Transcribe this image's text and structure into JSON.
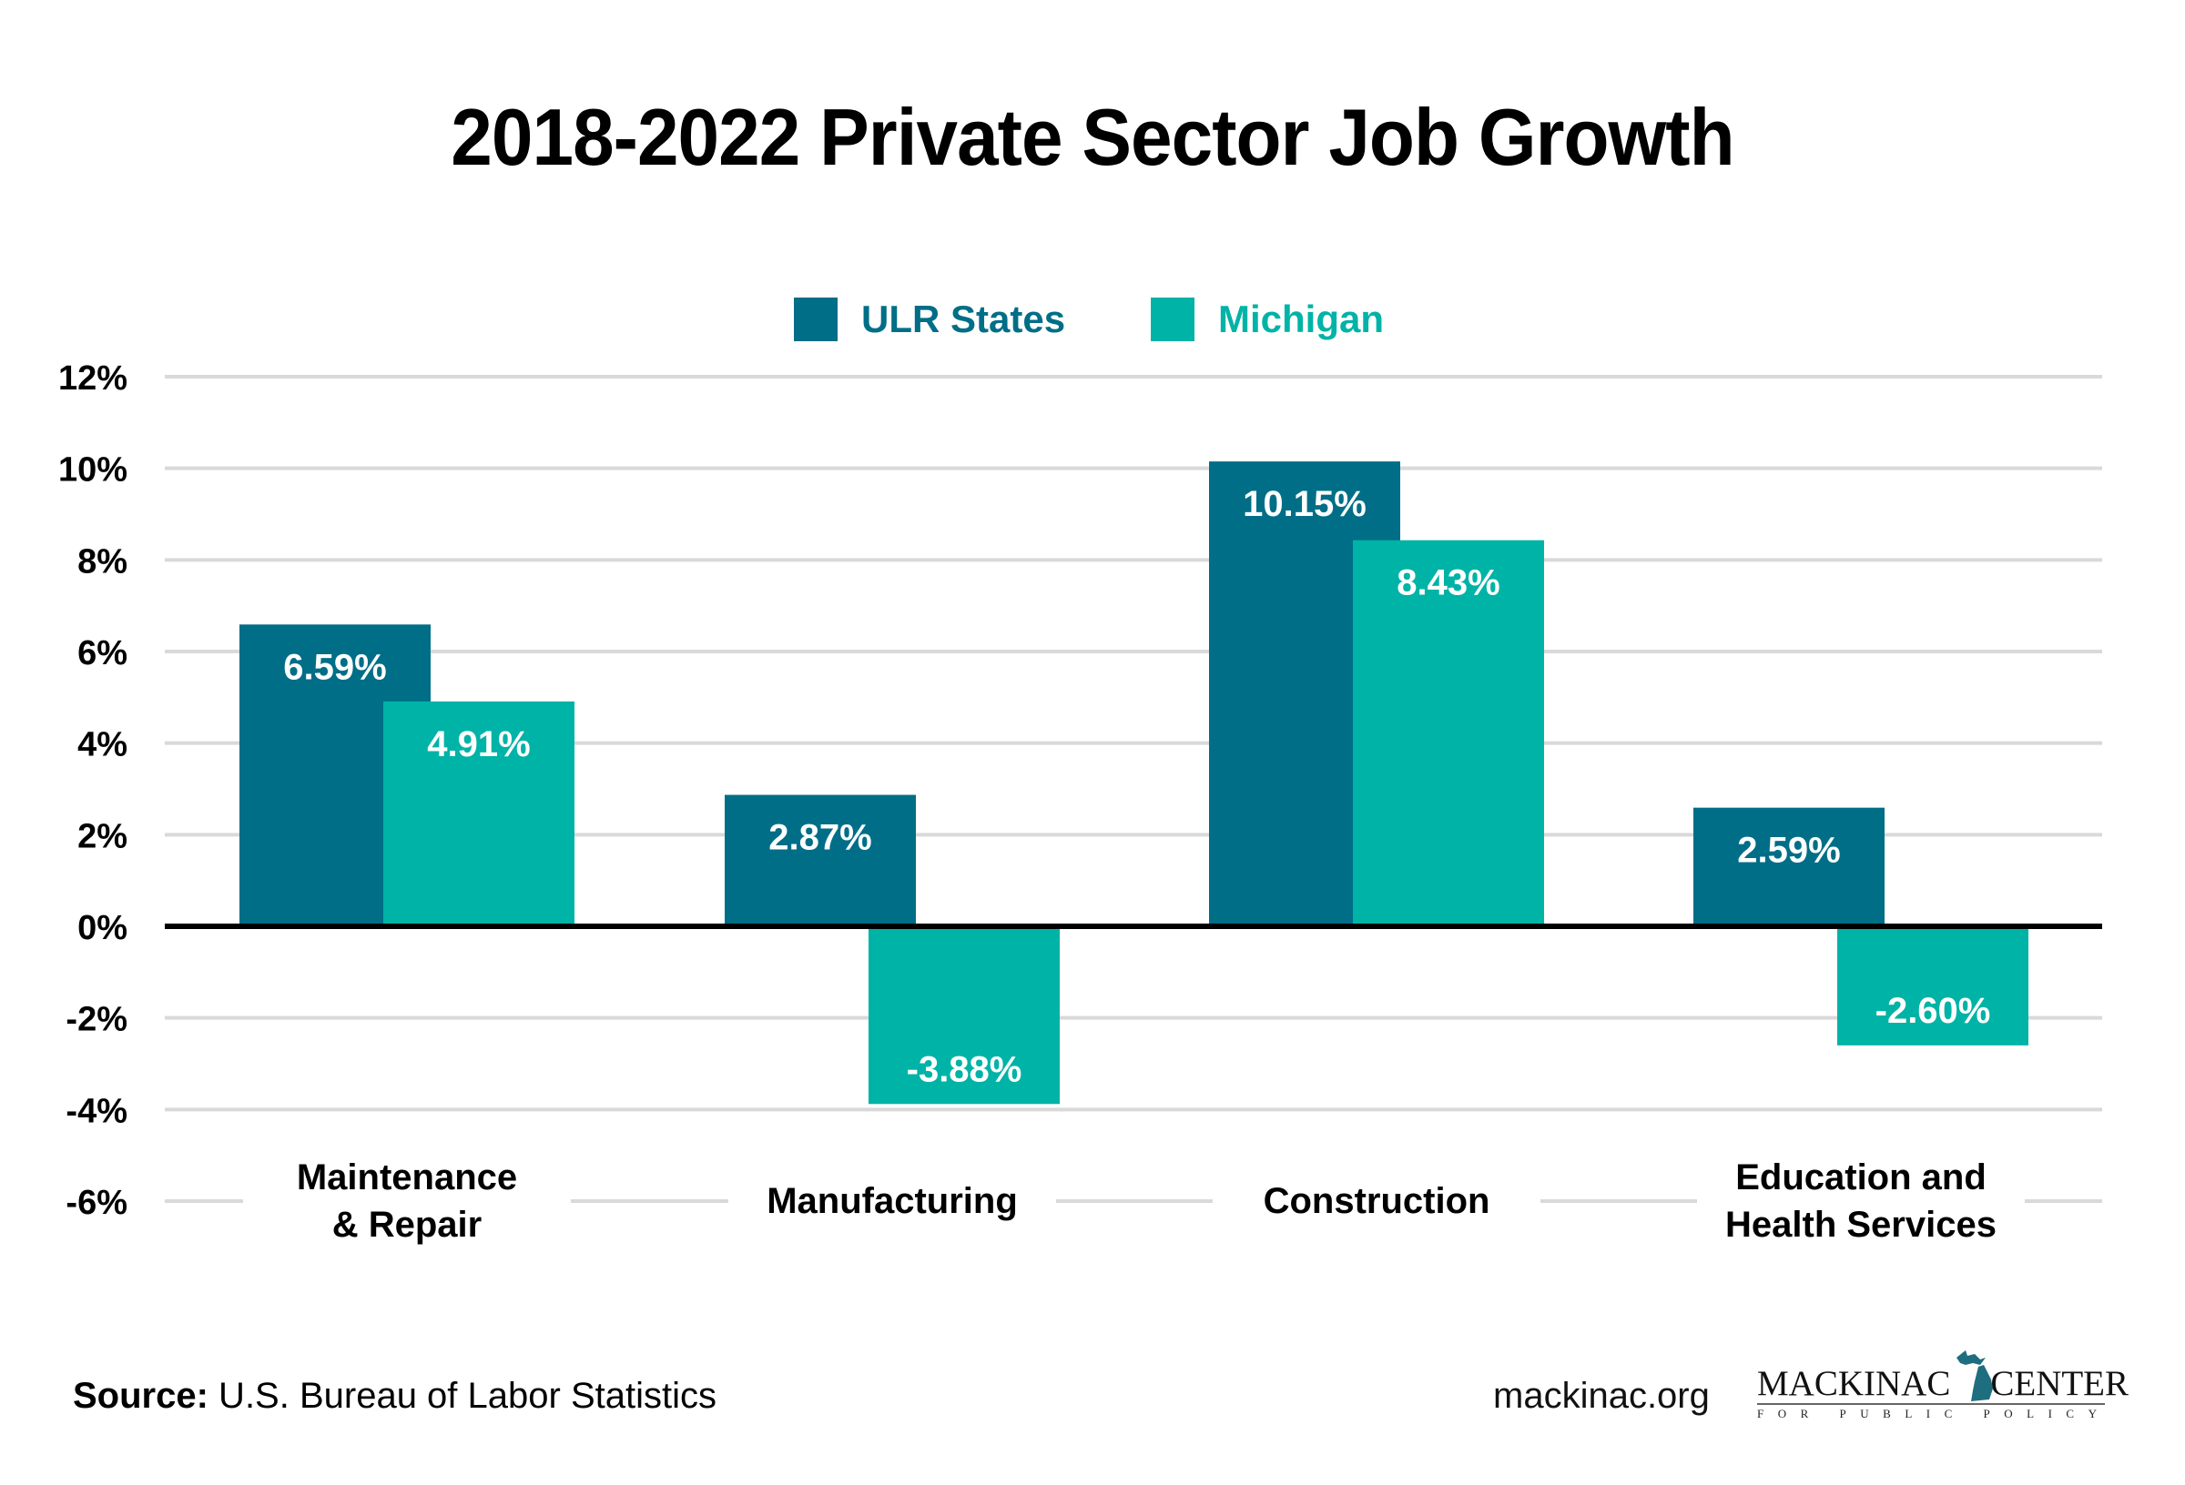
{
  "chart_data": {
    "type": "bar",
    "title": "2018-2022 Private Sector Job Growth",
    "xlabel": "",
    "ylabel": "",
    "categories": [
      [
        "Maintenance",
        "& Repair"
      ],
      [
        "Manufacturing"
      ],
      [
        "Construction"
      ],
      [
        "Education and",
        "Health Services"
      ]
    ],
    "series": [
      {
        "name": "ULR States",
        "color": "#006E87",
        "values": [
          6.59,
          2.87,
          10.15,
          2.59
        ],
        "labels": [
          "6.59%",
          "2.87%",
          "10.15%",
          "2.59%"
        ]
      },
      {
        "name": "Michigan",
        "color": "#00B3A7",
        "values": [
          4.91,
          -3.88,
          8.43,
          -2.6
        ],
        "labels": [
          "4.91%",
          "-3.88%",
          "8.43%",
          "-2.60%"
        ]
      }
    ],
    "ylim": [
      -6,
      12
    ],
    "yticks": [
      12,
      10,
      8,
      6,
      4,
      2,
      0,
      -2,
      -4,
      -6
    ],
    "ytick_labels": [
      "12%",
      "10%",
      "8%",
      "6%",
      "4%",
      "2%",
      "0%",
      "-2%",
      "-4%",
      "-6%"
    ],
    "grid": true,
    "legend_position": "top-center",
    "gridline_color": "#D9D9D9",
    "zero_line_color": "#000000"
  },
  "legend": {
    "items": [
      {
        "label": "ULR States",
        "color": "#006E87"
      },
      {
        "label": "Michigan",
        "color": "#00B3A7"
      }
    ]
  },
  "footer": {
    "source_label": "Source:",
    "source_text": " U.S. Bureau of Labor Statistics",
    "website": "mackinac.org",
    "logo_name": "MACKINAC CENTER",
    "logo_left": "MACKINAC",
    "logo_right": "CENTER",
    "logo_tagline": "FOR PUBLIC POLICY",
    "logo_color": "#1F6E80"
  }
}
